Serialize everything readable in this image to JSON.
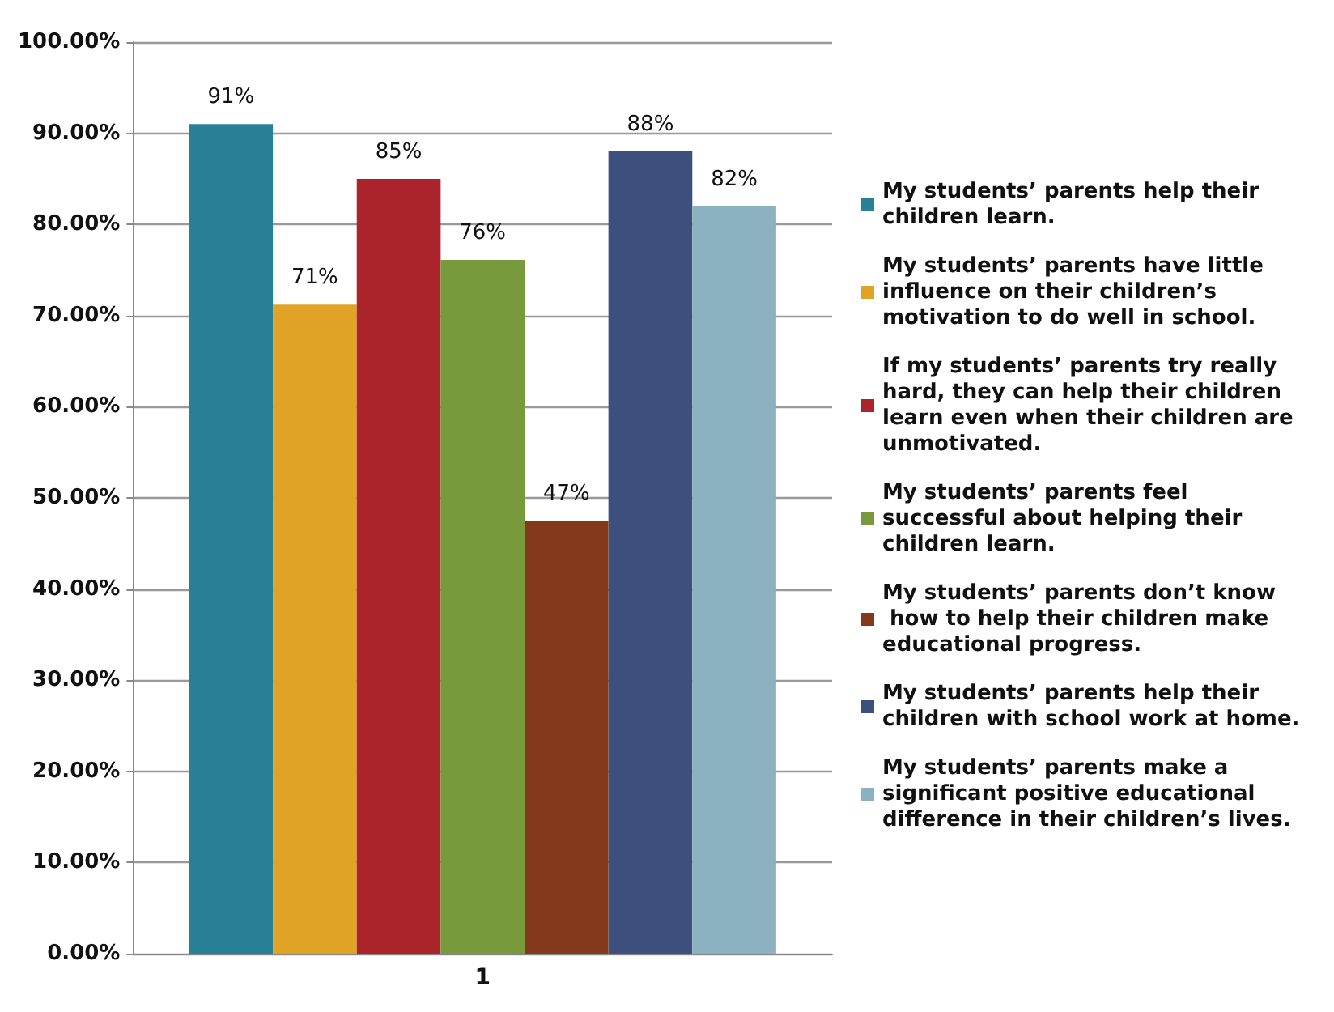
{
  "chart_data": {
    "type": "bar",
    "categories": [
      "1"
    ],
    "series": [
      {
        "name": "My students’ parents help their children learn.",
        "color": "#288096",
        "values": [
          91
        ],
        "value_labels": [
          "91%"
        ]
      },
      {
        "name": "My students’ parents have little influence on their children’s motivation to do well in school.",
        "color": "#e0a326",
        "values": [
          71.2
        ],
        "value_labels": [
          "71%"
        ]
      },
      {
        "name": "If my students’ parents try really hard, they can help their children learn even when their children are unmotivated.",
        "color": "#ac242b",
        "values": [
          85
        ],
        "value_labels": [
          "85%"
        ]
      },
      {
        "name": "My students’ parents feel successful about helping their children learn.",
        "color": "#78993c",
        "values": [
          76.1
        ],
        "value_labels": [
          "76%"
        ]
      },
      {
        "name": "My students’ parents don’t know how to help their children make educational progress.",
        "color": "#84391a",
        "values": [
          47.5
        ],
        "value_labels": [
          "47%"
        ]
      },
      {
        "name": "My students’ parents help their children with school work at home.",
        "color": "#3d4f7c",
        "values": [
          88
        ],
        "value_labels": [
          "88%"
        ]
      },
      {
        "name": "My students’ parents make a significant positive educational difference in their children’s lives.",
        "color": "#8cb2c1",
        "values": [
          82
        ],
        "value_labels": [
          "82%"
        ]
      }
    ],
    "ylim": [
      0,
      100
    ],
    "yticks": [
      {
        "value": 0,
        "label": "0.00%"
      },
      {
        "value": 10,
        "label": "10.00%"
      },
      {
        "value": 20,
        "label": "20.00%"
      },
      {
        "value": 30,
        "label": "30.00%"
      },
      {
        "value": 40,
        "label": "40.00%"
      },
      {
        "value": 50,
        "label": "50.00%"
      },
      {
        "value": 60,
        "label": "60.00%"
      },
      {
        "value": 70,
        "label": "70.00%"
      },
      {
        "value": 80,
        "label": "80.00%"
      },
      {
        "value": 90,
        "label": "90.00%"
      },
      {
        "value": 100,
        "label": "100.00%"
      }
    ],
    "grid": "y",
    "legend": "right"
  }
}
